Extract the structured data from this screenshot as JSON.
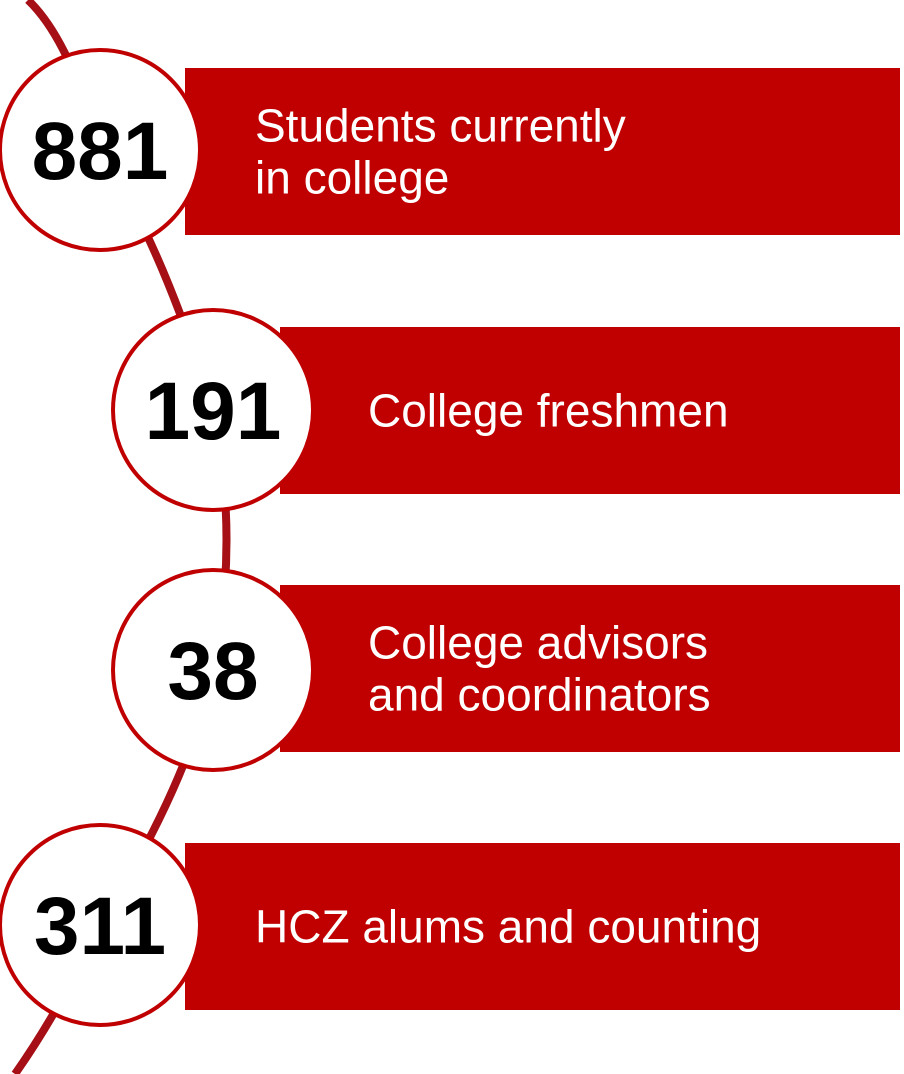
{
  "items": [
    {
      "number": "881",
      "lines": [
        "Students currently",
        "in college"
      ]
    },
    {
      "number": "191",
      "lines": [
        "College freshmen"
      ]
    },
    {
      "number": "38",
      "lines": [
        "College advisors",
        "and coordinators"
      ]
    },
    {
      "number": "311",
      "lines": [
        "HCZ alums and counting"
      ]
    }
  ]
}
